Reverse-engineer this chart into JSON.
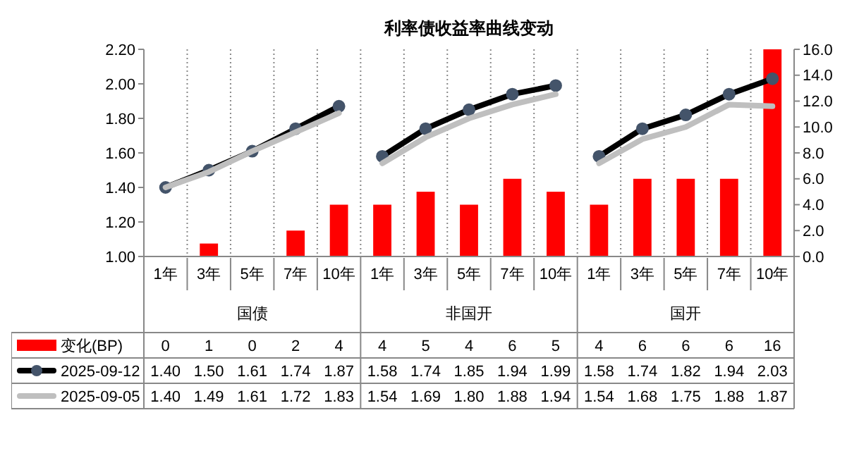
{
  "chart_data": {
    "type": "bar",
    "title": "利率债收益率曲线变动",
    "categories": [
      "1年",
      "3年",
      "5年",
      "7年",
      "10年",
      "1年",
      "3年",
      "5年",
      "7年",
      "10年",
      "1年",
      "3年",
      "5年",
      "7年",
      "10年"
    ],
    "annotations": [
      "国债",
      "非国开",
      "国开"
    ],
    "series": [
      {
        "name": "变化(BP)",
        "axis": "y2",
        "color": "#ff0000",
        "values": [
          0,
          1,
          0,
          2,
          4,
          4,
          5,
          4,
          6,
          5,
          4,
          6,
          6,
          6,
          16
        ],
        "value_labels": [
          "0",
          "1",
          "0",
          "2",
          "4",
          "4",
          "5",
          "4",
          "6",
          "5",
          "4",
          "6",
          "6",
          "6",
          "16"
        ]
      },
      {
        "name": "2025-09-12",
        "type": "line",
        "axis": "y",
        "color": "#000000",
        "marker": "circle",
        "values": [
          1.4,
          1.5,
          1.61,
          1.74,
          1.87,
          1.58,
          1.74,
          1.85,
          1.94,
          1.99,
          1.58,
          1.74,
          1.82,
          1.94,
          2.03
        ],
        "value_labels": [
          "1.40",
          "1.50",
          "1.61",
          "1.74",
          "1.87",
          "1.58",
          "1.74",
          "1.85",
          "1.94",
          "1.99",
          "1.58",
          "1.74",
          "1.82",
          "1.94",
          "2.03"
        ]
      },
      {
        "name": "2025-09-05",
        "type": "line",
        "axis": "y",
        "color": "#bfbfbf",
        "values": [
          1.4,
          1.49,
          1.61,
          1.72,
          1.83,
          1.54,
          1.69,
          1.8,
          1.88,
          1.94,
          1.54,
          1.68,
          1.75,
          1.88,
          1.87
        ],
        "value_labels": [
          "1.40",
          "1.49",
          "1.61",
          "1.72",
          "1.83",
          "1.54",
          "1.69",
          "1.80",
          "1.88",
          "1.94",
          "1.54",
          "1.68",
          "1.75",
          "1.88",
          "1.87"
        ]
      }
    ],
    "ylim": [
      1,
      2.2
    ],
    "yticks": [
      {
        "value": 1,
        "label": "1.00"
      },
      {
        "value": 1.2,
        "label": "1.20"
      },
      {
        "value": 1.4,
        "label": "1.40"
      },
      {
        "value": 1.6,
        "label": "1.60"
      },
      {
        "value": 1.8,
        "label": "1.80"
      },
      {
        "value": 2,
        "label": "2.00"
      },
      {
        "value": 2.2,
        "label": "2.20"
      }
    ],
    "y2lim": [
      0,
      16
    ],
    "y2ticks": [
      {
        "value": 0,
        "label": "0.0"
      },
      {
        "value": 2,
        "label": "2.0"
      },
      {
        "value": 4,
        "label": "4.0"
      },
      {
        "value": 6,
        "label": "6.0"
      },
      {
        "value": 8,
        "label": "8.0"
      },
      {
        "value": 10,
        "label": "10.0"
      },
      {
        "value": 12,
        "label": "12.0"
      },
      {
        "value": 14,
        "label": "14.0"
      },
      {
        "value": 16,
        "label": "16.0"
      }
    ],
    "grid": "x",
    "legend": "bottom"
  }
}
